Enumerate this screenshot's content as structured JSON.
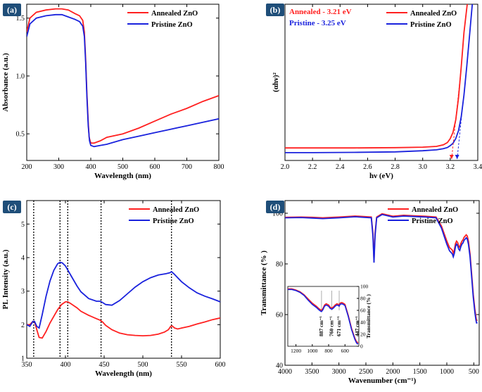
{
  "chart_data": [
    {
      "panel": "(a)",
      "type": "line",
      "title": "",
      "xlabel": "Wavelength (nm)",
      "ylabel": "Absorbance (a.u.)",
      "xlim": [
        200,
        800
      ],
      "ylim": [
        0.27,
        1.62
      ],
      "xticks": [
        200,
        300,
        400,
        500,
        600,
        700,
        800
      ],
      "yticks": [
        0.5,
        1.0,
        1.5
      ],
      "ytick_labels": [
        "0.5",
        "1.0",
        "1.5"
      ],
      "legend": "top-right",
      "series": [
        {
          "name": "Annealed ZnO",
          "color": "#ff2020",
          "x": [
            200,
            210,
            230,
            260,
            290,
            310,
            330,
            350,
            365,
            375,
            380,
            384,
            388,
            392,
            395,
            400,
            410,
            430,
            450,
            500,
            550,
            600,
            650,
            700,
            750,
            800
          ],
          "y": [
            1.38,
            1.5,
            1.55,
            1.57,
            1.58,
            1.58,
            1.57,
            1.54,
            1.52,
            1.48,
            1.38,
            1.15,
            0.85,
            0.6,
            0.47,
            0.42,
            0.42,
            0.44,
            0.47,
            0.5,
            0.55,
            0.61,
            0.67,
            0.72,
            0.78,
            0.83
          ]
        },
        {
          "name": "Pristine ZnO",
          "color": "#1a22dd",
          "x": [
            200,
            210,
            230,
            260,
            290,
            310,
            330,
            350,
            365,
            375,
            380,
            384,
            388,
            392,
            396,
            400,
            410,
            430,
            450,
            500,
            550,
            600,
            650,
            700,
            750,
            800
          ],
          "y": [
            1.34,
            1.45,
            1.5,
            1.52,
            1.53,
            1.53,
            1.51,
            1.49,
            1.47,
            1.43,
            1.34,
            1.12,
            0.82,
            0.57,
            0.44,
            0.4,
            0.39,
            0.4,
            0.41,
            0.45,
            0.48,
            0.51,
            0.54,
            0.57,
            0.6,
            0.63
          ]
        }
      ]
    },
    {
      "panel": "(b)",
      "type": "line",
      "title": "",
      "xlabel": "hν (eV)",
      "ylabel": "(αhν)²",
      "xlim": [
        2.0,
        3.4
      ],
      "ylim": [
        0,
        100
      ],
      "xticks": [
        2.0,
        2.2,
        2.4,
        2.6,
        2.8,
        3.0,
        3.2,
        3.4
      ],
      "xtick_labels": [
        "2.0",
        "2.2",
        "2.4",
        "2.6",
        "2.8",
        "3.0",
        "3.2",
        "3.4"
      ],
      "yticks": [],
      "legend": "top-right",
      "annotations": [
        {
          "text": "Annealed -  3.21 eV",
          "color": "#ff2020"
        },
        {
          "text": "Pristine    -  3.25 eV",
          "color": "#1a22dd"
        }
      ],
      "bandgaps": {
        "Annealed ZnO": 3.21,
        "Pristine ZnO": 3.25
      },
      "series": [
        {
          "name": "Annealed ZnO",
          "color": "#ff2020",
          "x": [
            2.0,
            2.2,
            2.5,
            2.8,
            3.0,
            3.1,
            3.15,
            3.18,
            3.2,
            3.22,
            3.24,
            3.26,
            3.28,
            3.3,
            3.33
          ],
          "y": [
            8.0,
            8.0,
            8.0,
            8.2,
            8.5,
            9.0,
            10.0,
            11.5,
            14.0,
            18.0,
            26.0,
            40.0,
            60.0,
            82.0,
            105.0
          ]
        },
        {
          "name": "Pristine ZnO",
          "color": "#1a22dd",
          "x": [
            2.0,
            2.2,
            2.5,
            2.8,
            3.0,
            3.1,
            3.15,
            3.18,
            3.2,
            3.22,
            3.24,
            3.26,
            3.28,
            3.3,
            3.32,
            3.34,
            3.36
          ],
          "y": [
            5.0,
            5.0,
            5.2,
            5.5,
            6.2,
            6.8,
            7.5,
            8.3,
            9.5,
            11.0,
            14.0,
            19.0,
            28.0,
            42.0,
            60.0,
            80.0,
            100.0
          ]
        }
      ]
    },
    {
      "panel": "(c)",
      "type": "line",
      "title": "",
      "xlabel": "Wavelength (nm)",
      "ylabel": "PL Intensity (a.u.)",
      "xlim": [
        350,
        600
      ],
      "ylim": [
        1,
        5.7
      ],
      "xticks": [
        350,
        400,
        450,
        500,
        550,
        600
      ],
      "yticks": [
        1,
        2,
        3,
        4,
        5
      ],
      "legend": "top-right",
      "vlines": [
        359,
        393,
        403,
        446,
        537
      ],
      "series": [
        {
          "name": "Annealed ZnO",
          "color": "#ff2020",
          "x": [
            350,
            354,
            358,
            360,
            363,
            366,
            370,
            375,
            380,
            385,
            390,
            395,
            400,
            403,
            406,
            410,
            415,
            420,
            430,
            440,
            445,
            448,
            452,
            460,
            470,
            480,
            490,
            500,
            510,
            520,
            528,
            533,
            536,
            538,
            541,
            545,
            550,
            560,
            570,
            580,
            590,
            600
          ],
          "y": [
            2.0,
            2.0,
            2.1,
            2.1,
            1.85,
            1.62,
            1.6,
            1.8,
            2.05,
            2.25,
            2.45,
            2.6,
            2.68,
            2.68,
            2.64,
            2.58,
            2.5,
            2.4,
            2.28,
            2.18,
            2.13,
            2.08,
            1.98,
            1.85,
            1.75,
            1.7,
            1.68,
            1.67,
            1.68,
            1.72,
            1.78,
            1.85,
            1.95,
            1.96,
            1.9,
            1.87,
            1.9,
            1.95,
            2.02,
            2.08,
            2.15,
            2.2
          ]
        },
        {
          "name": "Pristine ZnO",
          "color": "#1a22dd",
          "x": [
            350,
            354,
            358,
            360,
            363,
            366,
            370,
            375,
            380,
            385,
            390,
            393,
            396,
            400,
            405,
            410,
            415,
            420,
            430,
            440,
            445,
            448,
            452,
            460,
            470,
            480,
            490,
            500,
            510,
            520,
            530,
            535,
            537,
            540,
            545,
            550,
            560,
            570,
            580,
            590,
            600
          ],
          "y": [
            2.0,
            1.95,
            2.1,
            2.1,
            1.95,
            1.9,
            2.3,
            2.85,
            3.3,
            3.62,
            3.82,
            3.86,
            3.84,
            3.75,
            3.55,
            3.35,
            3.15,
            2.98,
            2.78,
            2.7,
            2.7,
            2.66,
            2.6,
            2.58,
            2.72,
            2.92,
            3.12,
            3.28,
            3.4,
            3.48,
            3.52,
            3.55,
            3.58,
            3.52,
            3.4,
            3.28,
            3.1,
            2.95,
            2.85,
            2.77,
            2.68
          ]
        }
      ]
    },
    {
      "panel": "(d)",
      "type": "line",
      "title": "",
      "xlabel": "Wavenumber (cm⁻¹)",
      "ylabel": "Transmittance (% )",
      "xlim": [
        4000,
        400
      ],
      "ylim": [
        40,
        105
      ],
      "xticks": [
        4000,
        3500,
        3000,
        2500,
        2000,
        1500,
        1000,
        500
      ],
      "yticks": [
        40,
        60,
        80,
        100
      ],
      "legend": "top-right",
      "series": [
        {
          "name": "Annealed ZnO",
          "color": "#ff2020",
          "x": [
            4000,
            3700,
            3500,
            3300,
            3000,
            2700,
            2400,
            2370,
            2350,
            2330,
            2300,
            2200,
            2000,
            1800,
            1600,
            1400,
            1200,
            1100,
            1000,
            950,
            900,
            880,
            860,
            840,
            820,
            800,
            780,
            760,
            740,
            720,
            700,
            680,
            660,
            640,
            620,
            600,
            570,
            540,
            510,
            480,
            460,
            447,
            440
          ],
          "y": [
            98.4,
            98.5,
            98.4,
            98.2,
            98.5,
            98.9,
            98.5,
            92.0,
            81.5,
            92.0,
            98.5,
            99.8,
            98.8,
            99.2,
            99.0,
            98.8,
            98.5,
            95.0,
            89.0,
            86.5,
            85.5,
            84.3,
            85.5,
            88.0,
            89.0,
            88.5,
            87.0,
            86.5,
            88.0,
            89.0,
            89.5,
            90.5,
            91.0,
            91.5,
            91.0,
            89.0,
            84.0,
            76.0,
            68.0,
            62.0,
            59.0,
            57.5,
            58.0
          ]
        },
        {
          "name": "Pristine ZnO",
          "color": "#1a22dd",
          "x": [
            4000,
            3700,
            3500,
            3300,
            3000,
            2700,
            2400,
            2370,
            2350,
            2330,
            2300,
            2200,
            2000,
            1800,
            1600,
            1400,
            1200,
            1100,
            1000,
            950,
            900,
            880,
            860,
            840,
            820,
            800,
            780,
            760,
            740,
            720,
            700,
            680,
            660,
            640,
            620,
            600,
            570,
            540,
            510,
            480,
            460,
            447,
            440
          ],
          "y": [
            98.2,
            98.3,
            98.1,
            97.9,
            98.2,
            98.6,
            98.2,
            91.0,
            80.5,
            91.0,
            98.2,
            99.5,
            98.5,
            98.9,
            98.7,
            98.5,
            98.2,
            94.2,
            87.8,
            85.2,
            84.0,
            82.8,
            84.2,
            86.8,
            87.8,
            87.3,
            85.8,
            85.3,
            86.8,
            87.8,
            88.3,
            89.3,
            89.8,
            90.3,
            89.8,
            87.8,
            82.8,
            74.8,
            66.8,
            60.8,
            57.8,
            56.5,
            57.0
          ]
        }
      ],
      "inset": {
        "xlim": [
          1300,
          430
        ],
        "ylim": [
          0,
          100
        ],
        "xticks": [
          1200,
          1000,
          800,
          600
        ],
        "yticks": [
          0,
          20,
          40,
          60,
          80,
          100
        ],
        "ylabel": "Transmittance (% )",
        "annotations": [
          "887 cm⁻¹",
          "760 cm⁻¹",
          "671 cm⁻¹",
          "447 cm⁻¹"
        ],
        "series": [
          {
            "name": "Annealed ZnO",
            "color": "#ff2020",
            "x": [
              1300,
              1250,
              1200,
              1150,
              1100,
              1050,
              1000,
              950,
              920,
              900,
              887,
              870,
              850,
              830,
              800,
              780,
              760,
              740,
              720,
              700,
              680,
              671,
              660,
              640,
              620,
              600,
              560,
              520,
              480,
              460,
              447,
              440
            ],
            "y": [
              96,
              96,
              94,
              91,
              86,
              79,
              72,
              67,
              63,
              61,
              60,
              63,
              69,
              71,
              69,
              65,
              64,
              66,
              69,
              71,
              70,
              69,
              72,
              73,
              72,
              70,
              52,
              30,
              14,
              8,
              6,
              7
            ]
          },
          {
            "name": "Pristine ZnO",
            "color": "#1a22dd",
            "x": [
              1300,
              1250,
              1200,
              1150,
              1100,
              1050,
              1000,
              950,
              920,
              900,
              887,
              870,
              850,
              830,
              800,
              780,
              760,
              740,
              720,
              700,
              680,
              671,
              660,
              640,
              620,
              600,
              560,
              520,
              480,
              460,
              447,
              440
            ],
            "y": [
              95,
              95,
              93,
              90,
              85,
              77,
              70,
              65,
              61,
              59,
              58,
              61,
              67,
              69,
              67,
              63,
              62,
              64,
              67,
              69,
              68,
              67,
              70,
              71,
              70,
              68,
              50,
              28,
              12,
              6,
              4,
              5
            ]
          }
        ]
      }
    }
  ]
}
